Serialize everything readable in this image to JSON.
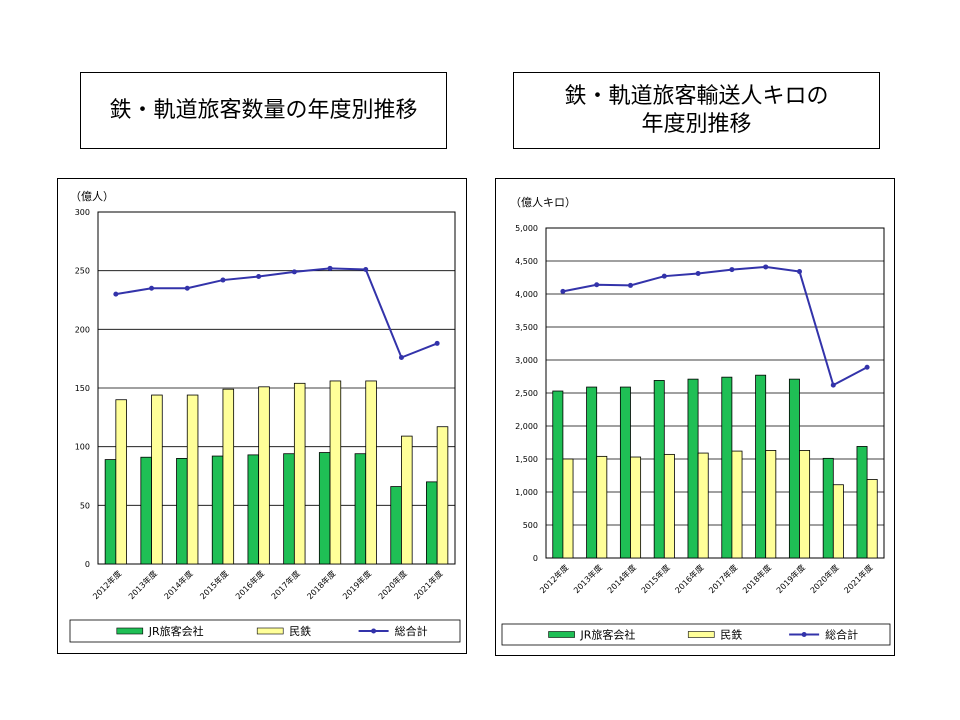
{
  "titles": {
    "left": "鉄・軌道旅客数量の年度別推移",
    "right_line1": "鉄・軌道旅客輸送人キロの",
    "right_line2": "年度別推移"
  },
  "colors": {
    "jr": "#1fbf55",
    "private": "#ffff99",
    "total": "#3333aa",
    "grid": "#000000"
  },
  "chart_data": [
    {
      "type": "bar",
      "unit_label": "（億人）",
      "categories": [
        "2012年度",
        "2013年度",
        "2014年度",
        "2015年度",
        "2016年度",
        "2017年度",
        "2018年度",
        "2019年度",
        "2020年度",
        "2021年度"
      ],
      "ylim": [
        0,
        300
      ],
      "yticks": [
        "0",
        "50",
        "100",
        "150",
        "200",
        "250",
        "300"
      ],
      "series": [
        {
          "name": "JR旅客会社",
          "kind": "bar",
          "values": [
            89,
            91,
            90,
            92,
            93,
            94,
            95,
            94,
            66,
            70
          ]
        },
        {
          "name": "民鉄",
          "kind": "bar",
          "values": [
            140,
            144,
            144,
            149,
            151,
            154,
            156,
            156,
            109,
            117
          ]
        },
        {
          "name": "総合計",
          "kind": "line",
          "values": [
            230,
            235,
            235,
            242,
            245,
            249,
            252,
            251,
            176,
            188
          ]
        }
      ],
      "grid": true,
      "legend_placement": "bottom"
    },
    {
      "type": "bar",
      "unit_label": "（億人キロ）",
      "categories": [
        "2012年度",
        "2013年度",
        "2014年度",
        "2015年度",
        "2016年度",
        "2017年度",
        "2018年度",
        "2019年度",
        "2020年度",
        "2021年度"
      ],
      "ylim": [
        0,
        5000
      ],
      "yticks": [
        "0",
        "500",
        "1,000",
        "1,500",
        "2,000",
        "2,500",
        "3,000",
        "3,500",
        "4,000",
        "4,500",
        "5,000"
      ],
      "series": [
        {
          "name": "JR旅客会社",
          "kind": "bar",
          "values": [
            2530,
            2590,
            2590,
            2690,
            2710,
            2740,
            2770,
            2710,
            1510,
            1690
          ]
        },
        {
          "name": "民鉄",
          "kind": "bar",
          "values": [
            1500,
            1540,
            1530,
            1570,
            1590,
            1620,
            1630,
            1630,
            1110,
            1190
          ]
        },
        {
          "name": "総合計",
          "kind": "line",
          "values": [
            4040,
            4140,
            4130,
            4270,
            4310,
            4370,
            4410,
            4340,
            2620,
            2890
          ]
        }
      ],
      "grid": true,
      "legend_placement": "bottom"
    }
  ]
}
